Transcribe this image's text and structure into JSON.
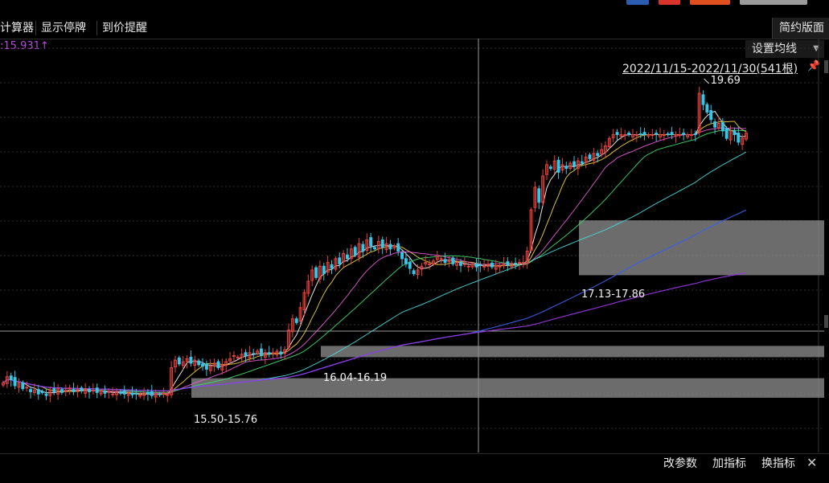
{
  "colors": {
    "background": "#000000",
    "up": "#e8413a",
    "down": "#35c6e8",
    "band": "#8a8a8a",
    "grid": "#2f2f2f",
    "accent_purple": "#b44ad9",
    "header_blue": "#2a5db0",
    "header_red": "#d9342b",
    "header_orange": "#e0501f",
    "header_grey": "#9a9a9a"
  },
  "toolbar": {
    "tools": [
      "计算器",
      "显示停牌",
      "到价提醒"
    ],
    "right_label": "简约版面"
  },
  "price_readout": "15.931",
  "ma_setting_label": "设置均线",
  "date_range": "2022/11/15-2022/11/30(541根)",
  "bottom_buttons": [
    "改参数",
    "加指标",
    "换指标"
  ],
  "icons": {
    "pin": "pin-icon",
    "close": "close-icon",
    "dropdown": "chevron-down-icon",
    "up_arrow": "arrow-up-icon"
  },
  "chart_data": {
    "type": "candlestick",
    "max_label": "19.69",
    "y_range": [
      15.2,
      19.85
    ],
    "bands": [
      {
        "label": "15.50-15.76",
        "low": 15.5,
        "high": 15.76
      },
      {
        "label": "16.04-16.19",
        "low": 16.04,
        "high": 16.19
      },
      {
        "label": "17.13-17.86",
        "low": 17.13,
        "high": 17.86
      }
    ],
    "closes": [
      15.7,
      15.78,
      15.74,
      15.66,
      15.7,
      15.62,
      15.64,
      15.58,
      15.6,
      15.55,
      15.57,
      15.53,
      15.6,
      15.58,
      15.62,
      15.57,
      15.6,
      15.63,
      15.58,
      15.61,
      15.59,
      15.62,
      15.58,
      15.6,
      15.57,
      15.59,
      15.56,
      15.58,
      15.55,
      15.57,
      15.56,
      15.55,
      15.56,
      15.54,
      15.55,
      15.54,
      15.56,
      15.55,
      15.53,
      15.55,
      15.54,
      15.56,
      15.55,
      15.9,
      16.0,
      15.95,
      15.98,
      16.02,
      15.96,
      16.0,
      15.94,
      15.92,
      15.88,
      15.92,
      15.96,
      15.9,
      15.94,
      15.98,
      16.02,
      16.06,
      16.04,
      16.08,
      16.06,
      16.1,
      16.08,
      16.12,
      16.06,
      16.1,
      16.08,
      16.1,
      16.12,
      16.08,
      16.14,
      16.4,
      16.55,
      16.5,
      16.7,
      16.9,
      17.05,
      17.2,
      17.1,
      17.25,
      17.15,
      17.3,
      17.22,
      17.35,
      17.28,
      17.42,
      17.35,
      17.48,
      17.4,
      17.55,
      17.45,
      17.6,
      17.52,
      17.48,
      17.58,
      17.5,
      17.55,
      17.48,
      17.52,
      17.45,
      17.35,
      17.28,
      17.22,
      17.15,
      17.2,
      17.25,
      17.3,
      17.28,
      17.32,
      17.38,
      17.35,
      17.3,
      17.33,
      17.28,
      17.3,
      17.26,
      17.28,
      17.25,
      17.27,
      17.24,
      17.26,
      17.25,
      17.27,
      17.24,
      17.26,
      17.25,
      17.28,
      17.26,
      17.29,
      17.27,
      17.3,
      17.3,
      17.45,
      18.0,
      18.3,
      18.1,
      18.45,
      18.6,
      18.55,
      18.65,
      18.5,
      18.6,
      18.55,
      18.62,
      18.58,
      18.65,
      18.62,
      18.7,
      18.68,
      18.75,
      18.72,
      18.8,
      18.85,
      18.95,
      19.0,
      19.0,
      19.0,
      19.0,
      19.0,
      19.0,
      19.0,
      19.0,
      19.0,
      19.0,
      19.0,
      19.0,
      19.0,
      19.0,
      19.0,
      19.0,
      19.0,
      19.0,
      19.0,
      19.0,
      19.0,
      19.0,
      19.55,
      19.4,
      19.3,
      19.2,
      19.1,
      19.15,
      19.05,
      18.95,
      19.05,
      19.0,
      18.9,
      18.95,
      19.02
    ]
  }
}
